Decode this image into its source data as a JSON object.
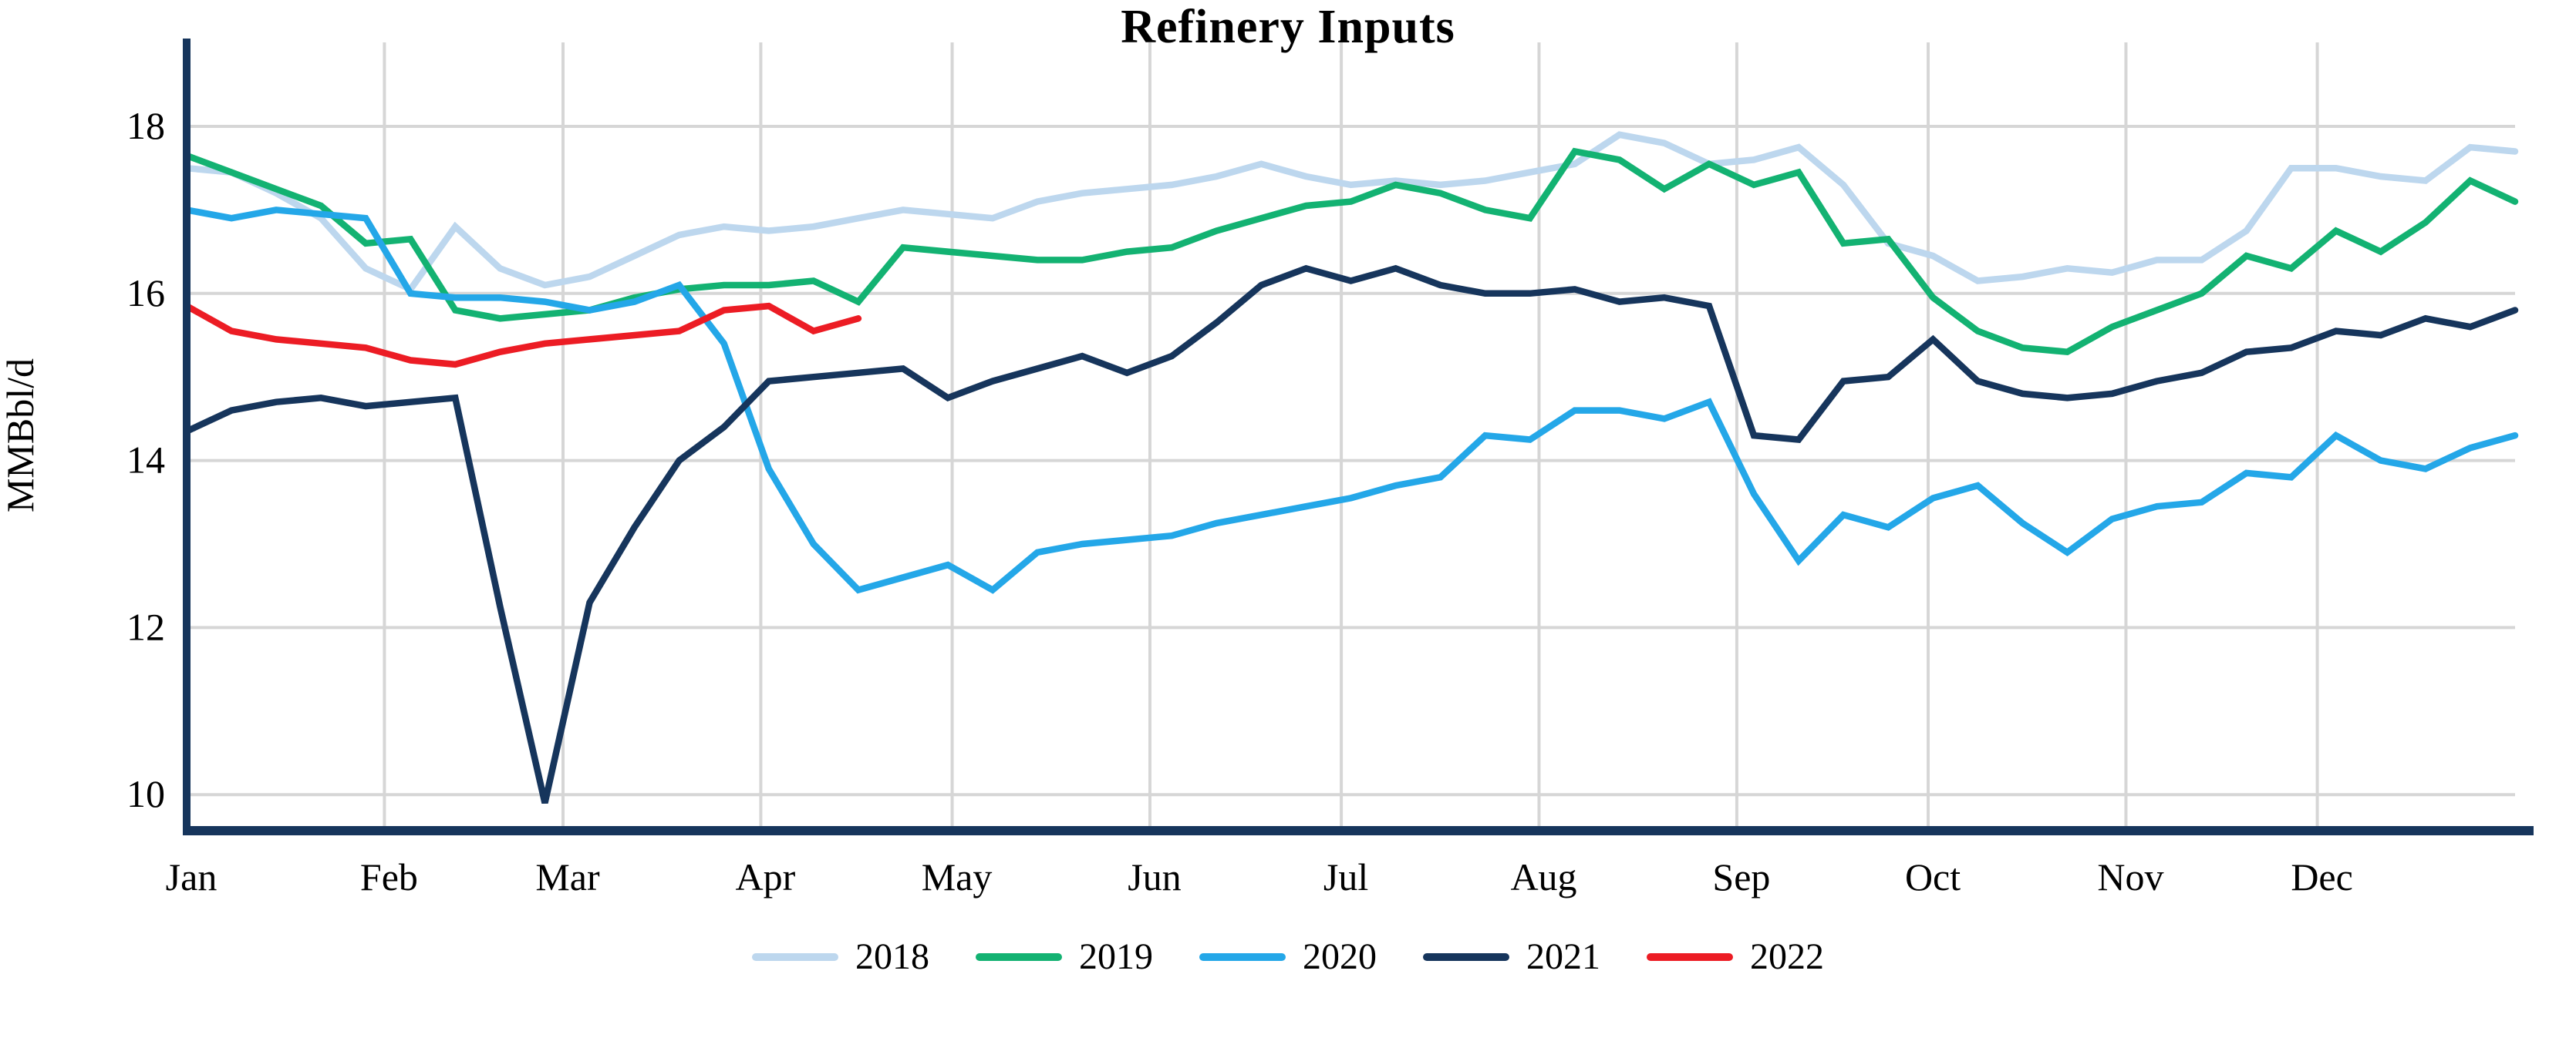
{
  "title": "Refinery Inputs",
  "y_axis": {
    "label": "MMBbl/d",
    "ticks": [
      18,
      16,
      14,
      12,
      10
    ]
  },
  "x_axis": {
    "months": [
      "Jan",
      "Feb",
      "Mar",
      "Apr",
      "May",
      "Jun",
      "Jul",
      "Aug",
      "Sep",
      "Oct",
      "Nov",
      "Dec"
    ],
    "month_day_offsets": [
      0,
      31,
      59,
      90,
      120,
      151,
      181,
      212,
      243,
      273,
      304,
      334
    ],
    "days_per_year": 365
  },
  "colors": {
    "grid": "#D6D6D6",
    "axis": "#16355C",
    "s2018": "#BDD7EE",
    "s2019": "#13B272",
    "s2020": "#24A7E8",
    "s2021": "#16355C",
    "s2022": "#EC1C24"
  },
  "chart_data": {
    "type": "line",
    "title": "Refinery Inputs",
    "ylabel": "MMBbl/d",
    "xlabel": "",
    "ylim": [
      9.55,
      18.55
    ],
    "grid": true,
    "legend_position": "bottom",
    "x_unit": "weekly (Jan-Dec)",
    "series": [
      {
        "name": "2018",
        "color": "#BDD7EE",
        "values": [
          17.5,
          17.45,
          17.2,
          16.9,
          16.3,
          16.05,
          16.8,
          16.3,
          16.1,
          16.2,
          16.45,
          16.7,
          16.8,
          16.75,
          16.8,
          16.9,
          17.0,
          16.95,
          16.9,
          17.1,
          17.2,
          17.25,
          17.3,
          17.4,
          17.55,
          17.4,
          17.3,
          17.35,
          17.3,
          17.35,
          17.45,
          17.55,
          17.9,
          17.8,
          17.55,
          17.6,
          17.75,
          17.3,
          16.6,
          16.45,
          16.15,
          16.2,
          16.3,
          16.25,
          16.4,
          16.4,
          16.75,
          17.5,
          17.5,
          17.4,
          17.35,
          17.75,
          17.7
        ]
      },
      {
        "name": "2019",
        "color": "#13B272",
        "values": [
          17.65,
          17.45,
          17.25,
          17.05,
          16.6,
          16.65,
          15.8,
          15.7,
          15.75,
          15.8,
          15.95,
          16.05,
          16.1,
          16.1,
          16.15,
          15.9,
          16.55,
          16.5,
          16.45,
          16.4,
          16.4,
          16.5,
          16.55,
          16.75,
          16.9,
          17.05,
          17.1,
          17.3,
          17.2,
          17.0,
          16.9,
          17.7,
          17.6,
          17.25,
          17.55,
          17.3,
          17.45,
          16.6,
          16.65,
          15.95,
          15.55,
          15.35,
          15.3,
          15.6,
          15.8,
          16.0,
          16.45,
          16.3,
          16.75,
          16.5,
          16.85,
          17.35,
          17.1
        ]
      },
      {
        "name": "2020",
        "color": "#24A7E8",
        "values": [
          17.0,
          16.9,
          17.0,
          16.95,
          16.9,
          16.0,
          15.95,
          15.95,
          15.9,
          15.8,
          15.9,
          16.1,
          15.4,
          13.9,
          13.0,
          12.45,
          12.6,
          12.75,
          12.45,
          12.9,
          13.0,
          13.05,
          13.1,
          13.25,
          13.35,
          13.45,
          13.55,
          13.7,
          13.8,
          14.3,
          14.25,
          14.6,
          14.6,
          14.5,
          14.7,
          13.6,
          12.8,
          13.35,
          13.2,
          13.55,
          13.7,
          13.25,
          12.9,
          13.3,
          13.45,
          13.5,
          13.85,
          13.8,
          14.3,
          14.0,
          13.9,
          14.15,
          14.3
        ]
      },
      {
        "name": "2021",
        "color": "#16355C",
        "values": [
          14.35,
          14.6,
          14.7,
          14.75,
          14.65,
          14.7,
          14.75,
          12.25,
          9.9,
          12.3,
          13.2,
          14.0,
          14.4,
          14.95,
          15.0,
          15.05,
          15.1,
          14.75,
          14.95,
          15.1,
          15.25,
          15.05,
          15.25,
          15.65,
          16.1,
          16.3,
          16.15,
          16.3,
          16.1,
          16.0,
          16.0,
          16.05,
          15.9,
          15.95,
          15.85,
          14.3,
          14.25,
          14.95,
          15.0,
          15.45,
          14.95,
          14.8,
          14.75,
          14.8,
          14.95,
          15.05,
          15.3,
          15.35,
          15.55,
          15.5,
          15.7,
          15.6,
          15.8
        ]
      },
      {
        "name": "2022",
        "color": "#EC1C24",
        "values": [
          15.85,
          15.55,
          15.45,
          15.4,
          15.35,
          15.2,
          15.15,
          15.3,
          15.4,
          15.45,
          15.5,
          15.55,
          15.8,
          15.85,
          15.55,
          15.7
        ]
      }
    ]
  }
}
